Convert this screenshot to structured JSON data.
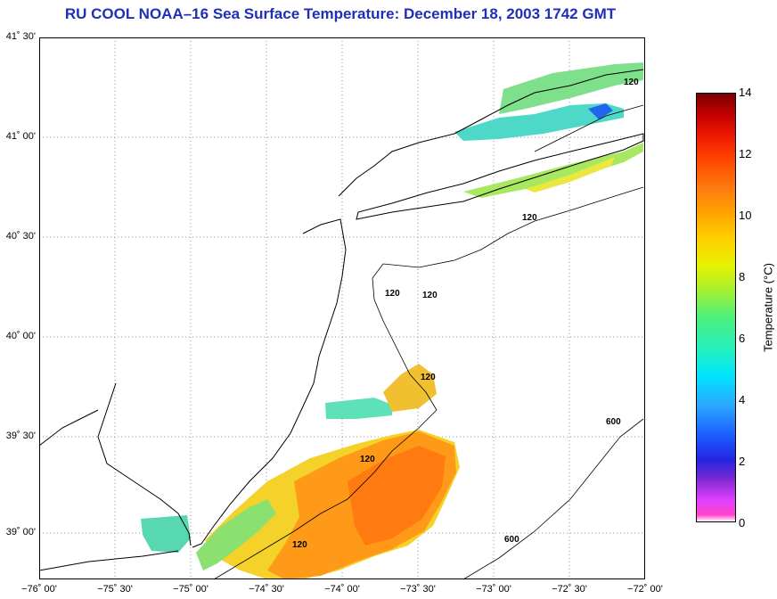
{
  "title": "RU COOL  NOAA–16  Sea Surface Temperature:  December 18, 2003 1742 GMT",
  "latitude_labels": [
    {
      "text": "41˚ 30'"
    },
    {
      "text": "41˚ 00'"
    },
    {
      "text": "40˚ 30'"
    },
    {
      "text": "40˚ 00'"
    },
    {
      "text": "39˚ 30'"
    },
    {
      "text": "39˚ 00'"
    }
  ],
  "longitude_labels": [
    {
      "text": "−76˚ 00'"
    },
    {
      "text": "−75˚ 30'"
    },
    {
      "text": "−75˚ 00'"
    },
    {
      "text": "−74˚ 30'"
    },
    {
      "text": "−74˚ 00'"
    },
    {
      "text": "−73˚ 30'"
    },
    {
      "text": "−73˚ 00'"
    },
    {
      "text": "−72˚ 30'"
    },
    {
      "text": "−72˚ 00'"
    }
  ],
  "contour_labels": [
    "120",
    "120",
    "120",
    "120",
    "120",
    "120",
    "120",
    "600",
    "600"
  ],
  "colorbar": {
    "label": "Temperature (°C)",
    "ticks": [
      "14",
      "12",
      "10",
      "8",
      "6",
      "4",
      "2",
      "0"
    ],
    "min": 0,
    "max": 14
  },
  "colors": {
    "title": "#1f2fb8",
    "warm": "#ff8a10",
    "mid": "#f0d81c",
    "cool": "#4ee8a0"
  }
}
